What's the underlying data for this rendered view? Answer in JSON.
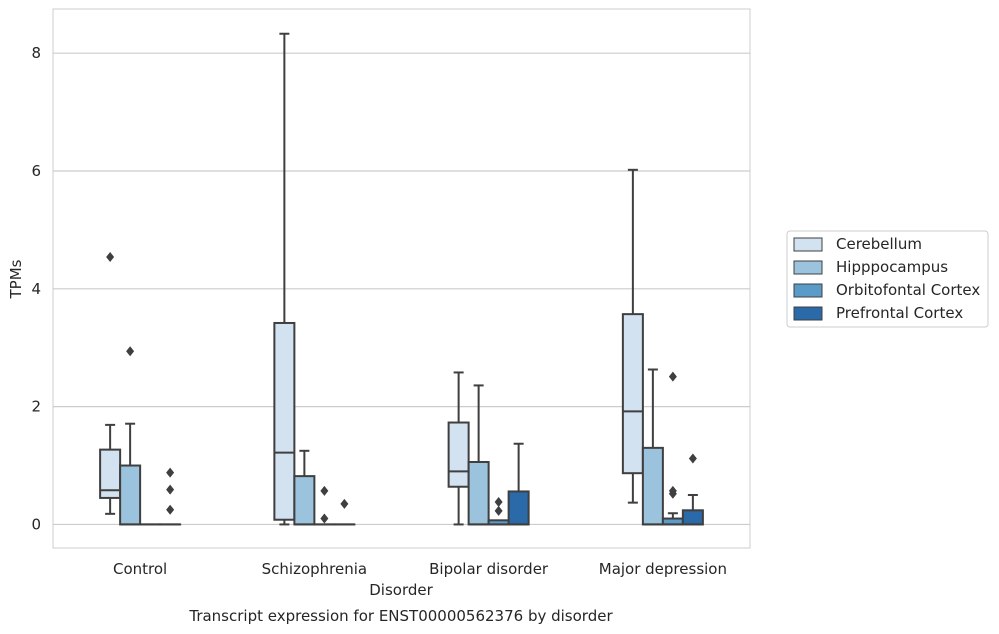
{
  "chart_data": {
    "type": "boxplot",
    "title": "Transcript expression for ENST00000562376 by disorder",
    "xlabel": "Disorder",
    "ylabel": "TPMs",
    "categories": [
      "Control",
      "Schizophrenia",
      "Bipolar disorder",
      "Major depression"
    ],
    "ylim": [
      -0.4,
      8.75
    ],
    "yticks": [
      0,
      2,
      4,
      6,
      8
    ],
    "grid": "horizontal",
    "legend_position": "right",
    "series": [
      {
        "name": "Cerebellum",
        "color": "#d3e2f0",
        "boxes": [
          {
            "category": "Control",
            "whisker_low": 0.18,
            "q1": 0.45,
            "median": 0.58,
            "q3": 1.27,
            "whisker_high": 1.69,
            "outliers": [
              4.54
            ]
          },
          {
            "category": "Schizophrenia",
            "whisker_low": 0.0,
            "q1": 0.08,
            "median": 1.22,
            "q3": 3.42,
            "whisker_high": 8.33,
            "outliers": []
          },
          {
            "category": "Bipolar disorder",
            "whisker_low": 0.0,
            "q1": 0.64,
            "median": 0.9,
            "q3": 1.73,
            "whisker_high": 2.58,
            "outliers": []
          },
          {
            "category": "Major depression",
            "whisker_low": 0.37,
            "q1": 0.87,
            "median": 1.92,
            "q3": 3.57,
            "whisker_high": 6.02,
            "outliers": []
          }
        ]
      },
      {
        "name": "Hipppocampus",
        "color": "#9cc3dd",
        "boxes": [
          {
            "category": "Control",
            "whisker_low": 0.0,
            "q1": 0.0,
            "median": 0.0,
            "q3": 1.0,
            "whisker_high": 1.71,
            "outliers": [
              2.94
            ]
          },
          {
            "category": "Schizophrenia",
            "whisker_low": 0.0,
            "q1": 0.0,
            "median": 0.0,
            "q3": 0.82,
            "whisker_high": 1.25,
            "outliers": []
          },
          {
            "category": "Bipolar disorder",
            "whisker_low": 0.0,
            "q1": 0.0,
            "median": 0.0,
            "q3": 1.06,
            "whisker_high": 2.36,
            "outliers": []
          },
          {
            "category": "Major depression",
            "whisker_low": 0.0,
            "q1": 0.0,
            "median": 0.0,
            "q3": 1.3,
            "whisker_high": 2.63,
            "outliers": []
          }
        ]
      },
      {
        "name": "Orbitofontal Cortex",
        "color": "#5b9bc9",
        "boxes": [
          {
            "category": "Control",
            "whisker_low": 0.0,
            "q1": 0.0,
            "median": 0.0,
            "q3": 0.0,
            "whisker_high": 0.0,
            "outliers": []
          },
          {
            "category": "Schizophrenia",
            "whisker_low": 0.0,
            "q1": 0.0,
            "median": 0.0,
            "q3": 0.0,
            "whisker_high": 0.0,
            "outliers": [
              0.1,
              0.57
            ]
          },
          {
            "category": "Bipolar disorder",
            "whisker_low": 0.0,
            "q1": 0.0,
            "median": 0.0,
            "q3": 0.07,
            "whisker_high": 0.07,
            "outliers": [
              0.23,
              0.38
            ]
          },
          {
            "category": "Major depression",
            "whisker_low": 0.0,
            "q1": 0.0,
            "median": 0.0,
            "q3": 0.1,
            "whisker_high": 0.19,
            "outliers": [
              0.52,
              0.57,
              2.51
            ]
          }
        ]
      },
      {
        "name": "Prefrontal Cortex",
        "color": "#2b6aa8",
        "boxes": [
          {
            "category": "Control",
            "whisker_low": 0.0,
            "q1": 0.0,
            "median": 0.0,
            "q3": 0.0,
            "whisker_high": 0.0,
            "outliers": [
              0.25,
              0.59,
              0.88
            ]
          },
          {
            "category": "Schizophrenia",
            "whisker_low": 0.0,
            "q1": 0.0,
            "median": 0.0,
            "q3": 0.0,
            "whisker_high": 0.0,
            "outliers": [
              0.35
            ]
          },
          {
            "category": "Bipolar disorder",
            "whisker_low": 0.0,
            "q1": 0.0,
            "median": 0.0,
            "q3": 0.56,
            "whisker_high": 1.37,
            "outliers": []
          },
          {
            "category": "Major depression",
            "whisker_low": 0.0,
            "q1": 0.0,
            "median": 0.0,
            "q3": 0.24,
            "whisker_high": 0.5,
            "outliers": [
              1.12
            ]
          }
        ]
      }
    ]
  },
  "colors": {
    "grid": "#cccccc",
    "frame": "#cccccc",
    "box_edge": "#3f3f3f",
    "text": "#262626"
  }
}
